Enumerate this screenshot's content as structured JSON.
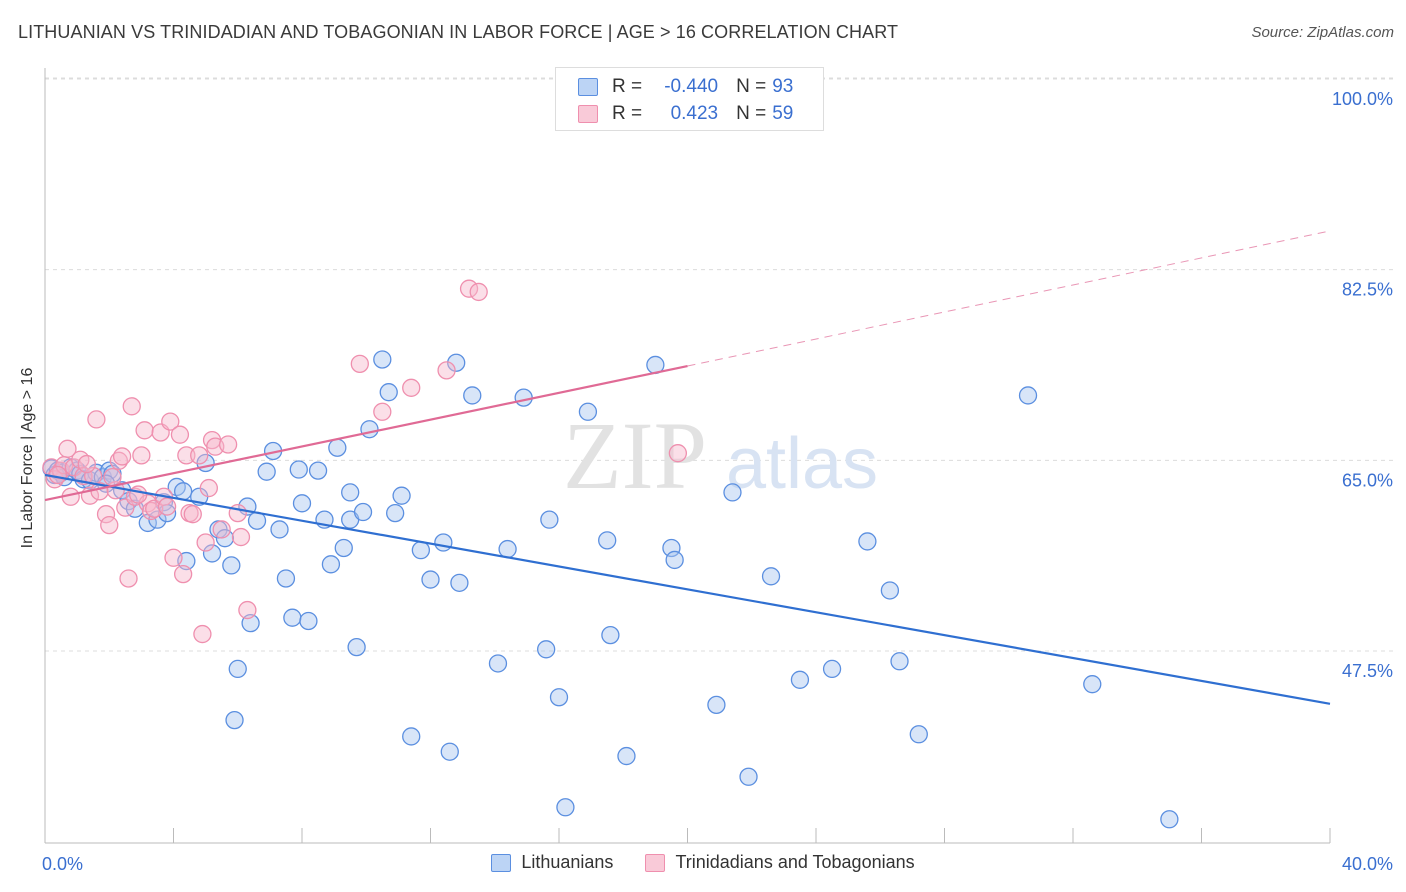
{
  "header": {
    "title": "LITHUANIAN VS TRINIDADIAN AND TOBAGONIAN IN LABOR FORCE | AGE > 16 CORRELATION CHART",
    "source": "Source: ZipAtlas.com"
  },
  "watermark": {
    "zip": "ZIP",
    "atlas": "atlas"
  },
  "legend": {
    "rows": [
      {
        "r_label": "R =",
        "r_value": "-0.440",
        "n_label": "N =",
        "n_value": "93"
      },
      {
        "r_label": "R =",
        "r_value": "0.423",
        "n_label": "N =",
        "n_value": "59"
      }
    ]
  },
  "colors": {
    "blue_fill": "#a8c6f0",
    "blue_stroke": "#5b8fe0",
    "blue_line": "#2f6fd1",
    "pink_fill": "#f6b9cc",
    "pink_stroke": "#ef8fae",
    "pink_line": "#e06a95",
    "tick_label": "#3a6fd0",
    "grid": "#dcdcdc"
  },
  "chart_data": {
    "type": "scatter",
    "xlabel": "",
    "ylabel": "In Labor Force | Age > 16",
    "xlim": [
      0,
      40
    ],
    "ylim": [
      30,
      100
    ],
    "x_tick_labels": [
      "0.0%",
      "40.0%"
    ],
    "y_ticks": [
      47.5,
      65.0,
      82.5,
      100.0
    ],
    "y_tick_labels": [
      "47.5%",
      "65.0%",
      "82.5%",
      "100.0%"
    ],
    "grid": "horizontal dashed",
    "legend_position": "top-center",
    "series": [
      {
        "name": "Lithuanians",
        "color": "#5b8fe0",
        "trend": {
          "x": [
            0,
            40
          ],
          "y": [
            65.4,
            44.4
          ],
          "style": "solid"
        },
        "points": [
          [
            0.2,
            66.0
          ],
          [
            0.3,
            65.4
          ],
          [
            0.4,
            65.8
          ],
          [
            0.5,
            65.6
          ],
          [
            0.6,
            65.2
          ],
          [
            0.8,
            66.1
          ],
          [
            1.0,
            65.8
          ],
          [
            1.1,
            65.5
          ],
          [
            1.2,
            65.0
          ],
          [
            1.4,
            64.9
          ],
          [
            1.6,
            65.6
          ],
          [
            1.8,
            65.2
          ],
          [
            2.0,
            65.8
          ],
          [
            2.1,
            65.5
          ],
          [
            2.4,
            64.0
          ],
          [
            2.6,
            63.0
          ],
          [
            2.8,
            62.3
          ],
          [
            3.2,
            61.0
          ],
          [
            3.5,
            61.3
          ],
          [
            3.7,
            62.9
          ],
          [
            4.1,
            64.3
          ],
          [
            4.3,
            63.9
          ],
          [
            4.4,
            57.5
          ],
          [
            4.8,
            63.4
          ],
          [
            5.0,
            66.5
          ],
          [
            5.2,
            58.2
          ],
          [
            5.4,
            60.4
          ],
          [
            5.6,
            59.6
          ],
          [
            5.8,
            57.1
          ],
          [
            6.0,
            47.6
          ],
          [
            5.9,
            42.9
          ],
          [
            6.3,
            62.5
          ],
          [
            6.4,
            51.8
          ],
          [
            6.6,
            61.2
          ],
          [
            6.9,
            65.7
          ],
          [
            7.1,
            67.6
          ],
          [
            7.3,
            60.4
          ],
          [
            7.5,
            55.9
          ],
          [
            7.7,
            52.3
          ],
          [
            7.9,
            65.9
          ],
          [
            8.0,
            62.8
          ],
          [
            8.2,
            52.0
          ],
          [
            8.5,
            65.8
          ],
          [
            8.7,
            61.3
          ],
          [
            8.9,
            57.2
          ],
          [
            9.1,
            67.9
          ],
          [
            9.3,
            58.7
          ],
          [
            9.5,
            61.3
          ],
          [
            9.5,
            63.8
          ],
          [
            9.9,
            62.0
          ],
          [
            9.7,
            49.6
          ],
          [
            10.1,
            69.6
          ],
          [
            10.5,
            76.0
          ],
          [
            10.7,
            73.0
          ],
          [
            10.9,
            61.9
          ],
          [
            11.1,
            63.5
          ],
          [
            11.4,
            41.4
          ],
          [
            11.7,
            58.5
          ],
          [
            12.0,
            55.8
          ],
          [
            12.4,
            59.2
          ],
          [
            12.6,
            40.0
          ],
          [
            12.8,
            75.7
          ],
          [
            12.9,
            55.5
          ],
          [
            13.3,
            72.7
          ],
          [
            14.1,
            48.1
          ],
          [
            14.4,
            58.6
          ],
          [
            14.9,
            72.5
          ],
          [
            15.6,
            49.4
          ],
          [
            15.7,
            61.3
          ],
          [
            16.0,
            45.0
          ],
          [
            16.2,
            34.9
          ],
          [
            16.9,
            71.2
          ],
          [
            17.5,
            59.4
          ],
          [
            17.6,
            50.7
          ],
          [
            18.1,
            39.6
          ],
          [
            19.0,
            75.5
          ],
          [
            19.5,
            58.7
          ],
          [
            19.6,
            57.6
          ],
          [
            20.9,
            44.3
          ],
          [
            21.4,
            63.8
          ],
          [
            21.9,
            37.7
          ],
          [
            22.6,
            56.1
          ],
          [
            23.5,
            46.6
          ],
          [
            24.5,
            47.6
          ],
          [
            25.6,
            59.3
          ],
          [
            26.3,
            54.8
          ],
          [
            26.6,
            48.3
          ],
          [
            27.2,
            41.6
          ],
          [
            30.6,
            72.7
          ],
          [
            32.6,
            46.2
          ],
          [
            35.0,
            33.8
          ],
          [
            3.8,
            61.9
          ],
          [
            1.9,
            64.6
          ]
        ]
      },
      {
        "name": "Trinidadians and Tobagonians",
        "color": "#ef8fae",
        "trend": {
          "x": [
            0,
            20
          ],
          "y": [
            63.1,
            75.4
          ],
          "style": "solid",
          "extended": {
            "x": [
              20,
              40
            ],
            "y": [
              75.4,
              87.8
            ],
            "style": "dashed"
          }
        },
        "points": [
          [
            0.2,
            66.1
          ],
          [
            0.3,
            65.0
          ],
          [
            0.5,
            65.8
          ],
          [
            0.6,
            66.3
          ],
          [
            0.7,
            67.8
          ],
          [
            0.8,
            63.4
          ],
          [
            0.9,
            66.1
          ],
          [
            1.1,
            66.8
          ],
          [
            1.2,
            65.3
          ],
          [
            1.4,
            63.5
          ],
          [
            1.6,
            70.5
          ],
          [
            1.7,
            63.9
          ],
          [
            1.9,
            61.8
          ],
          [
            2.0,
            60.8
          ],
          [
            2.2,
            64.0
          ],
          [
            2.3,
            66.7
          ],
          [
            2.4,
            67.1
          ],
          [
            2.5,
            62.4
          ],
          [
            2.6,
            55.9
          ],
          [
            2.7,
            71.7
          ],
          [
            2.8,
            63.4
          ],
          [
            3.0,
            67.2
          ],
          [
            3.1,
            69.5
          ],
          [
            3.2,
            62.8
          ],
          [
            3.3,
            62.1
          ],
          [
            3.4,
            62.3
          ],
          [
            3.6,
            69.3
          ],
          [
            3.7,
            63.4
          ],
          [
            3.8,
            62.5
          ],
          [
            3.9,
            70.3
          ],
          [
            4.0,
            57.8
          ],
          [
            4.2,
            69.1
          ],
          [
            4.3,
            56.3
          ],
          [
            4.4,
            67.2
          ],
          [
            4.5,
            61.9
          ],
          [
            4.6,
            61.8
          ],
          [
            4.8,
            67.2
          ],
          [
            4.9,
            50.8
          ],
          [
            5.0,
            59.2
          ],
          [
            5.1,
            64.2
          ],
          [
            5.2,
            68.6
          ],
          [
            5.3,
            68.0
          ],
          [
            5.5,
            60.4
          ],
          [
            5.7,
            68.2
          ],
          [
            6.0,
            61.9
          ],
          [
            6.1,
            59.7
          ],
          [
            6.3,
            53.0
          ],
          [
            9.8,
            75.6
          ],
          [
            10.5,
            71.2
          ],
          [
            11.4,
            73.4
          ],
          [
            12.5,
            75.0
          ],
          [
            13.2,
            82.5
          ],
          [
            13.5,
            82.2
          ],
          [
            19.7,
            67.4
          ],
          [
            1.5,
            65.3
          ],
          [
            2.1,
            65.2
          ],
          [
            2.9,
            63.6
          ],
          [
            0.4,
            65.4
          ],
          [
            1.3,
            66.4
          ]
        ]
      }
    ]
  },
  "bottom_legend": {
    "items": [
      {
        "label": "Lithuanians"
      },
      {
        "label": "Trinidadians and Tobagonians"
      }
    ]
  }
}
